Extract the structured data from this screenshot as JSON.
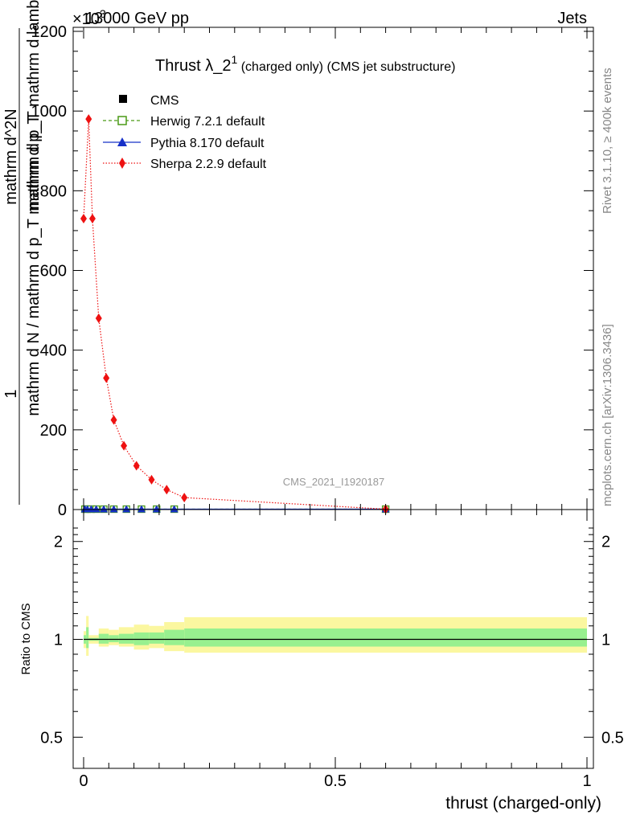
{
  "header": {
    "left": "13000 GeV pp",
    "right": "Jets",
    "exponent_label": "×10",
    "exponent_power": "3",
    "analysis_id": "CMS_2021_I1920187"
  },
  "side_text": {
    "rivet": "Rivet 3.1.10, ≥ 400k events",
    "mcplots": "mcplots.cern.ch [arXiv:1306.3436]"
  },
  "title": {
    "main": "Thrust λ_2",
    "sup": "1",
    "rest": " (charged only) (CMS jet substructure)"
  },
  "axes": {
    "main_ylabel_top": "1",
    "main_ylabel_bottom": "mathrm d N / mathrm d p_T mathrm d p_T",
    "main_ylabel_side": "mathrm d^2N",
    "main_ylabel_side2": "mathrm d p_T mathrm d lambda",
    "ratio_ylabel": "Ratio to CMS",
    "xlabel": "thrust (charged-only)"
  },
  "legend": [
    {
      "label": "CMS",
      "color": "#000000",
      "marker": "square-filled",
      "line": "none"
    },
    {
      "label": "Herwig 7.2.1 default",
      "color": "#4a9a16",
      "marker": "square-open",
      "line": "dashed"
    },
    {
      "label": "Pythia 8.170 default",
      "color": "#1630c8",
      "marker": "triangle",
      "line": "solid"
    },
    {
      "label": "Sherpa 2.2.9 default",
      "color": "#ee1111",
      "marker": "diamond",
      "line": "dotted"
    }
  ],
  "chart_data": {
    "type": "line",
    "title": "Thrust λ_2^1 (charged only) (CMS jet substructure)",
    "xlabel": "thrust (charged-only)",
    "xlim": [
      0,
      1
    ],
    "ylim": [
      0,
      1200
    ],
    "y_scale_note": "×10^3",
    "x_ticks": [
      0,
      0.5,
      1
    ],
    "x_tick_labels": [
      "0",
      "0.5",
      "1"
    ],
    "y_ticks": [
      0,
      200,
      400,
      600,
      800,
      1000,
      1200
    ],
    "y_tick_labels": [
      "0",
      "200",
      "400",
      "600",
      "800",
      "1000",
      "1200"
    ],
    "ratio_ylim": [
      0.4,
      2.3
    ],
    "ratio_ticks": [
      0.5,
      1,
      2
    ],
    "ratio_tick_labels": [
      "0.5",
      "1",
      "2"
    ],
    "legend_position": "top-left",
    "bin_edges": [
      0,
      0.005,
      0.01,
      0.02,
      0.03,
      0.05,
      0.07,
      0.1,
      0.13,
      0.16,
      0.2,
      1.0
    ],
    "series": [
      {
        "name": "CMS",
        "x": [
          0.0025,
          0.0075,
          0.015,
          0.025,
          0.04,
          0.06,
          0.085,
          0.115,
          0.145,
          0.18,
          0.6
        ],
        "values": [
          1,
          1,
          1,
          1,
          1,
          1,
          1,
          1,
          1,
          1,
          1
        ]
      },
      {
        "name": "Herwig 7.2.1 default",
        "x": [
          0.0025,
          0.0075,
          0.015,
          0.025,
          0.04,
          0.06,
          0.085,
          0.115,
          0.145,
          0.18,
          0.6
        ],
        "values": [
          1,
          1,
          1,
          1,
          1,
          1,
          1,
          1,
          1,
          1,
          1
        ]
      },
      {
        "name": "Pythia 8.170 default",
        "x": [
          0.0025,
          0.0075,
          0.015,
          0.025,
          0.04,
          0.06,
          0.085,
          0.115,
          0.145,
          0.18,
          0.6
        ],
        "values": [
          1,
          1,
          1,
          1,
          1,
          1,
          1,
          1,
          1,
          1,
          1
        ]
      },
      {
        "name": "Sherpa 2.2.9 default",
        "x": [
          0.0,
          0.01,
          0.0175,
          0.03,
          0.045,
          0.06,
          0.08,
          0.105,
          0.135,
          0.165,
          0.2,
          0.6
        ],
        "values": [
          730,
          980,
          730,
          480,
          330,
          225,
          160,
          110,
          75,
          50,
          30,
          1
        ]
      }
    ],
    "ratio_band_edges": [
      0,
      0.005,
      0.01,
      0.02,
      0.03,
      0.05,
      0.07,
      0.1,
      0.13,
      0.16,
      0.2,
      1.0
    ],
    "ratio_band_yellow": [
      [
        0.94,
        1.06
      ],
      [
        0.89,
        1.18
      ],
      [
        0.97,
        1.03
      ],
      [
        0.97,
        1.03
      ],
      [
        0.95,
        1.08
      ],
      [
        0.96,
        1.07
      ],
      [
        0.95,
        1.09
      ],
      [
        0.93,
        1.11
      ],
      [
        0.94,
        1.1
      ],
      [
        0.92,
        1.13
      ],
      [
        0.91,
        1.17
      ]
    ],
    "ratio_band_green": [
      [
        0.97,
        1.03
      ],
      [
        0.94,
        1.09
      ],
      [
        0.99,
        1.01
      ],
      [
        0.99,
        1.01
      ],
      [
        0.97,
        1.04
      ],
      [
        0.98,
        1.03
      ],
      [
        0.97,
        1.04
      ],
      [
        0.96,
        1.05
      ],
      [
        0.97,
        1.05
      ],
      [
        0.96,
        1.07
      ],
      [
        0.95,
        1.08
      ]
    ]
  }
}
